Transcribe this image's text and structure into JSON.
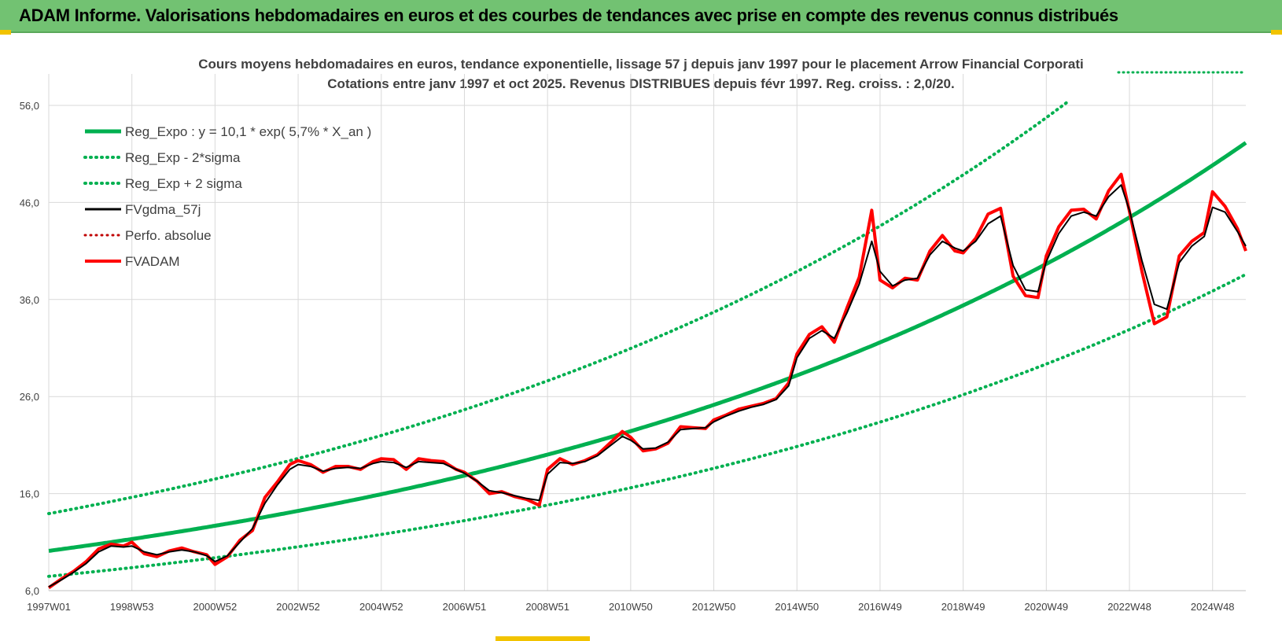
{
  "banner": {
    "title": "ADAM Informe. Valorisations hebdomadaires en euros et des courbes de tendances avec prise en compte des revenus connus distribués"
  },
  "colors": {
    "banner_bg": "#72c272",
    "reg_green": "#00b050",
    "fv_red": "#ff0000",
    "gdma_black": "#000000",
    "grid": "#d9d9d9",
    "text": "#404040"
  },
  "chart_data": {
    "type": "line",
    "title": [
      "Cours moyens hebdomadaires en euros, tendance exponentielle, lissage 57 j depuis janv 1997  pour le placement Arrow Financial Corporati",
      "Cotations entre janv 1997 et oct 2025. Revenus DISTRIBUES depuis févr 1997. Reg.  croiss. : 2,0/20."
    ],
    "xlabel": "",
    "ylabel": "",
    "ylim": [
      6,
      56
    ],
    "xlim": [
      1997.0,
      2025.8
    ],
    "y_ticks": [
      "6,0",
      "16,0",
      "26,0",
      "36,0",
      "46,0",
      "56,0"
    ],
    "y_tick_values": [
      6,
      16,
      26,
      36,
      46,
      56
    ],
    "x_ticks": [
      "1997W01",
      "1998W53",
      "2000W52",
      "2002W52",
      "2004W52",
      "2006W51",
      "2008W51",
      "2010W50",
      "2012W50",
      "2014W50",
      "2016W49",
      "2018W49",
      "2020W49",
      "2022W48",
      "2024W48"
    ],
    "x_tick_years": [
      1997.0,
      1999.0,
      2001.0,
      2003.0,
      2005.0,
      2007.0,
      2009.0,
      2011.0,
      2013.0,
      2015.0,
      2017.0,
      2019.0,
      2021.0,
      2023.0,
      2025.0
    ],
    "grid": true,
    "legend_position": "top-left",
    "regression": {
      "a": 10.1,
      "rate": 0.057,
      "sigma_factor_low": 0.74,
      "sigma_factor_high": 1.38
    },
    "legend": [
      {
        "label": "Reg_Expo : y = 10,1 * exp( 5,7% *  X_an )",
        "color": "#00b050",
        "style": "solid",
        "width": 5
      },
      {
        "label": "Reg_Exp - 2*sigma",
        "color": "#00b050",
        "style": "dotted",
        "width": 4
      },
      {
        "label": "Reg_Exp + 2 sigma",
        "color": "#00b050",
        "style": "dotted",
        "width": 4
      },
      {
        "label": "FVgdma_57j",
        "color": "#000000",
        "style": "solid",
        "width": 3
      },
      {
        "label": "Perfo. absolue",
        "color": "#c00000",
        "style": "dotted",
        "width": 3
      },
      {
        "label": "FVADAM",
        "color": "#ff0000",
        "style": "solid",
        "width": 4
      }
    ],
    "series": [
      {
        "name": "Reg_Expo : y = 10,1 * exp( 5,7% *  X_an )",
        "kind": "regression"
      },
      {
        "name": "Reg_Exp - 2*sigma",
        "kind": "regression_low"
      },
      {
        "name": "Reg_Exp + 2 sigma",
        "kind": "regression_high"
      },
      {
        "name": "FVADAM",
        "x": [
          1997.0,
          1997.3,
          1997.6,
          1997.9,
          1998.2,
          1998.5,
          1998.8,
          1999.0,
          1999.3,
          1999.6,
          1999.9,
          2000.2,
          2000.5,
          2000.8,
          2001.0,
          2001.3,
          2001.6,
          2001.9,
          2002.2,
          2002.5,
          2002.8,
          2003.0,
          2003.3,
          2003.6,
          2003.9,
          2004.2,
          2004.5,
          2004.8,
          2005.0,
          2005.3,
          2005.6,
          2005.9,
          2006.2,
          2006.5,
          2006.8,
          2007.0,
          2007.3,
          2007.6,
          2007.9,
          2008.2,
          2008.5,
          2008.8,
          2009.0,
          2009.3,
          2009.6,
          2009.9,
          2010.2,
          2010.5,
          2010.8,
          2011.0,
          2011.3,
          2011.6,
          2011.9,
          2012.2,
          2012.5,
          2012.8,
          2013.0,
          2013.3,
          2013.6,
          2013.9,
          2014.2,
          2014.5,
          2014.8,
          2015.0,
          2015.3,
          2015.6,
          2015.9,
          2016.2,
          2016.5,
          2016.8,
          2017.0,
          2017.3,
          2017.6,
          2017.9,
          2018.2,
          2018.5,
          2018.8,
          2019.0,
          2019.3,
          2019.6,
          2019.9,
          2020.2,
          2020.5,
          2020.8,
          2021.0,
          2021.3,
          2021.6,
          2021.9,
          2022.2,
          2022.5,
          2022.8,
          2023.0,
          2023.3,
          2023.6,
          2023.9,
          2024.2,
          2024.5,
          2024.8,
          2025.0,
          2025.3,
          2025.6,
          2025.8
        ],
        "values": [
          6.3,
          7.2,
          8.0,
          9.0,
          10.3,
          10.8,
          10.6,
          11.0,
          9.8,
          9.5,
          10.1,
          10.4,
          10.0,
          9.7,
          8.7,
          9.5,
          11.2,
          12.2,
          15.6,
          17.2,
          19.0,
          19.4,
          19.0,
          18.2,
          18.8,
          18.8,
          18.5,
          19.3,
          19.6,
          19.5,
          18.5,
          19.6,
          19.4,
          19.3,
          18.5,
          18.2,
          17.3,
          16.0,
          16.2,
          15.7,
          15.4,
          14.8,
          18.5,
          19.6,
          19.0,
          19.4,
          20.0,
          21.2,
          22.4,
          21.8,
          20.4,
          20.6,
          21.2,
          22.9,
          22.8,
          22.7,
          23.6,
          24.1,
          24.7,
          25.0,
          25.3,
          25.8,
          27.4,
          30.4,
          32.4,
          33.2,
          31.6,
          35.1,
          38.3,
          45.2,
          38.0,
          37.2,
          38.2,
          38.0,
          41.0,
          42.6,
          41.0,
          40.8,
          42.3,
          44.8,
          45.4,
          38.4,
          36.4,
          36.2,
          40.5,
          43.5,
          45.2,
          45.3,
          44.3,
          47.2,
          48.9,
          45.1,
          38.9,
          33.5,
          34.2,
          40.5,
          42.0,
          42.9,
          47.1,
          45.6,
          43.3,
          41.0
        ]
      },
      {
        "name": "FVgdma_57j",
        "x": [
          1997.0,
          1997.3,
          1997.6,
          1997.9,
          1998.2,
          1998.5,
          1998.8,
          1999.0,
          1999.3,
          1999.6,
          1999.9,
          2000.2,
          2000.5,
          2000.8,
          2001.0,
          2001.3,
          2001.6,
          2001.9,
          2002.2,
          2002.5,
          2002.8,
          2003.0,
          2003.3,
          2003.6,
          2003.9,
          2004.2,
          2004.5,
          2004.8,
          2005.0,
          2005.3,
          2005.6,
          2005.9,
          2006.2,
          2006.5,
          2006.8,
          2007.0,
          2007.3,
          2007.6,
          2007.9,
          2008.2,
          2008.5,
          2008.8,
          2009.0,
          2009.3,
          2009.6,
          2009.9,
          2010.2,
          2010.5,
          2010.8,
          2011.0,
          2011.3,
          2011.6,
          2011.9,
          2012.2,
          2012.5,
          2012.8,
          2013.0,
          2013.3,
          2013.6,
          2013.9,
          2014.2,
          2014.5,
          2014.8,
          2015.0,
          2015.3,
          2015.6,
          2015.9,
          2016.2,
          2016.5,
          2016.8,
          2017.0,
          2017.3,
          2017.6,
          2017.9,
          2018.2,
          2018.5,
          2018.8,
          2019.0,
          2019.3,
          2019.6,
          2019.9,
          2020.2,
          2020.5,
          2020.8,
          2021.0,
          2021.3,
          2021.6,
          2021.9,
          2022.2,
          2022.5,
          2022.8,
          2023.0,
          2023.3,
          2023.6,
          2023.9,
          2024.2,
          2024.5,
          2024.8,
          2025.0,
          2025.3,
          2025.6,
          2025.8
        ],
        "values": [
          6.4,
          7.1,
          7.9,
          8.8,
          10.0,
          10.6,
          10.5,
          10.6,
          10.0,
          9.7,
          10.0,
          10.2,
          10.0,
          9.6,
          9.0,
          9.6,
          11.0,
          12.4,
          15.0,
          16.9,
          18.5,
          19.0,
          18.8,
          18.3,
          18.6,
          18.7,
          18.6,
          19.1,
          19.3,
          19.2,
          18.7,
          19.3,
          19.2,
          19.1,
          18.5,
          18.1,
          17.3,
          16.3,
          16.1,
          15.8,
          15.5,
          15.3,
          18.0,
          19.2,
          19.1,
          19.3,
          19.9,
          20.9,
          21.9,
          21.5,
          20.6,
          20.7,
          21.3,
          22.6,
          22.7,
          22.8,
          23.4,
          24.0,
          24.5,
          24.9,
          25.2,
          25.7,
          27.1,
          30.0,
          32.0,
          32.8,
          32.0,
          34.6,
          37.6,
          42.0,
          38.9,
          37.4,
          38.0,
          38.2,
          40.6,
          42.0,
          41.3,
          41.0,
          42.0,
          43.8,
          44.6,
          39.5,
          37.0,
          36.8,
          39.9,
          42.8,
          44.6,
          45.0,
          44.6,
          46.6,
          47.8,
          45.2,
          40.0,
          35.5,
          35.0,
          39.8,
          41.5,
          42.5,
          45.5,
          45.0,
          43.0,
          41.5
        ]
      }
    ]
  }
}
